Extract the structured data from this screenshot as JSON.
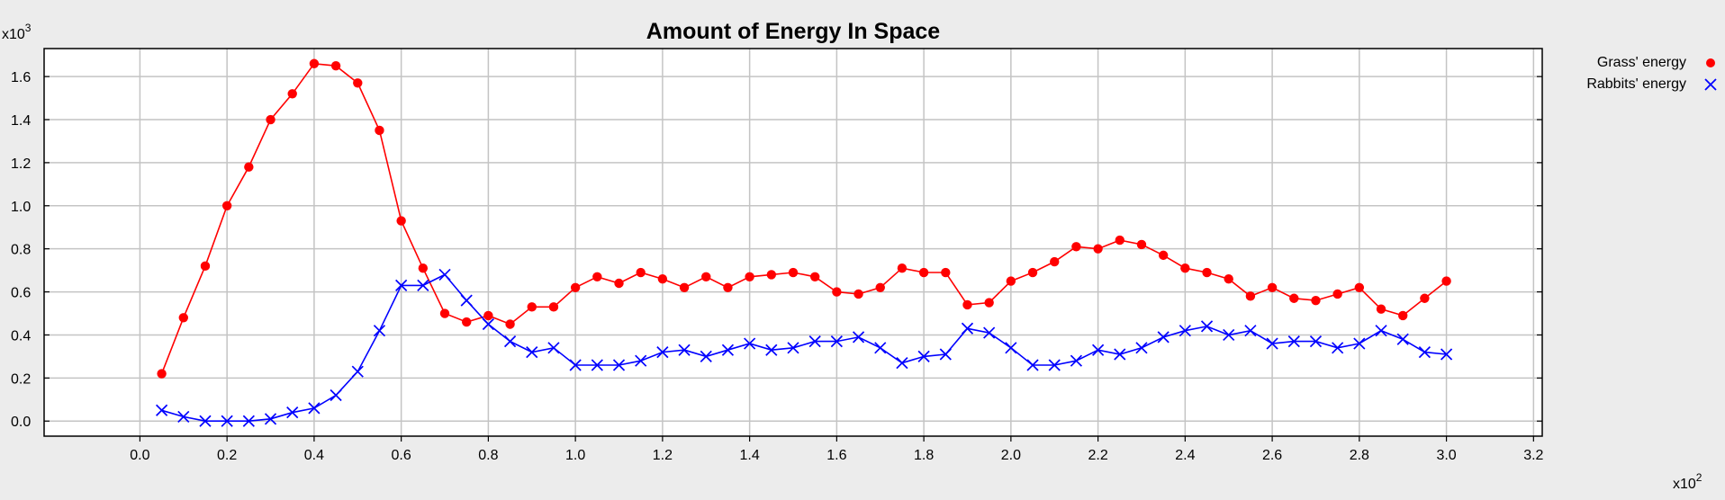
{
  "chart_data": {
    "type": "line",
    "title": "Amount of Energy In Space",
    "y_multiplier": "x10",
    "y_multiplier_exp": "3",
    "x_multiplier": "x10",
    "x_multiplier_exp": "2",
    "xlim": [
      -0.22,
      3.22
    ],
    "ylim": [
      -0.07,
      1.73
    ],
    "x_ticks": [
      0.0,
      0.2,
      0.4,
      0.6,
      0.8,
      1.0,
      1.2,
      1.4,
      1.6,
      1.8,
      2.0,
      2.2,
      2.4,
      2.6,
      2.8,
      3.0,
      3.2
    ],
    "x_tick_labels": [
      "0.0",
      "0.2",
      "0.4",
      "0.6",
      "0.8",
      "1.0",
      "1.2",
      "1.4",
      "1.6",
      "1.8",
      "2.0",
      "2.2",
      "2.4",
      "2.6",
      "2.8",
      "3.0",
      "3.2"
    ],
    "y_ticks": [
      0.0,
      0.2,
      0.4,
      0.6,
      0.8,
      1.0,
      1.2,
      1.4,
      1.6
    ],
    "y_tick_labels": [
      "0.0",
      "0.2",
      "0.4",
      "0.6",
      "0.8",
      "1.0",
      "1.2",
      "1.4",
      "1.6"
    ],
    "grid": true,
    "legend_position": "top-right",
    "x": [
      0.05,
      0.1,
      0.15,
      0.2,
      0.25,
      0.3,
      0.35,
      0.4,
      0.45,
      0.5,
      0.55,
      0.6,
      0.65,
      0.7,
      0.75,
      0.8,
      0.85,
      0.9,
      0.95,
      1.0,
      1.05,
      1.1,
      1.15,
      1.2,
      1.25,
      1.3,
      1.35,
      1.4,
      1.45,
      1.5,
      1.55,
      1.6,
      1.65,
      1.7,
      1.75,
      1.8,
      1.85,
      1.9,
      1.95,
      2.0,
      2.05,
      2.1,
      2.15,
      2.2,
      2.25,
      2.3,
      2.35,
      2.4,
      2.45,
      2.5,
      2.55,
      2.6,
      2.65,
      2.7,
      2.75,
      2.8,
      2.85,
      2.9,
      2.95,
      3.0
    ],
    "series": [
      {
        "name": "Grass' energy",
        "color": "#ff0000",
        "marker": "circle",
        "values": [
          0.22,
          0.48,
          0.72,
          1.0,
          1.18,
          1.4,
          1.52,
          1.66,
          1.65,
          1.57,
          1.35,
          0.93,
          0.71,
          0.5,
          0.46,
          0.49,
          0.45,
          0.53,
          0.53,
          0.62,
          0.67,
          0.64,
          0.69,
          0.66,
          0.62,
          0.67,
          0.62,
          0.67,
          0.68,
          0.69,
          0.67,
          0.6,
          0.59,
          0.62,
          0.71,
          0.69,
          0.69,
          0.54,
          0.55,
          0.65,
          0.69,
          0.74,
          0.81,
          0.8,
          0.84,
          0.82,
          0.77,
          0.71,
          0.69,
          0.66,
          0.58,
          0.62,
          0.57,
          0.56,
          0.59,
          0.62,
          0.52,
          0.49,
          0.57,
          0.65
        ]
      },
      {
        "name": "Rabbits' energy",
        "color": "#0000ff",
        "marker": "x",
        "values": [
          0.05,
          0.02,
          0.0,
          0.0,
          0.0,
          0.01,
          0.04,
          0.06,
          0.12,
          0.23,
          0.42,
          0.63,
          0.63,
          0.68,
          0.56,
          0.45,
          0.37,
          0.32,
          0.34,
          0.26,
          0.26,
          0.26,
          0.28,
          0.32,
          0.33,
          0.3,
          0.33,
          0.36,
          0.33,
          0.34,
          0.37,
          0.37,
          0.39,
          0.34,
          0.27,
          0.3,
          0.31,
          0.43,
          0.41,
          0.34,
          0.26,
          0.26,
          0.28,
          0.33,
          0.31,
          0.34,
          0.39,
          0.42,
          0.44,
          0.4,
          0.42,
          0.36,
          0.37,
          0.37,
          0.34,
          0.36,
          0.42,
          0.38,
          0.32,
          0.31
        ]
      }
    ]
  }
}
